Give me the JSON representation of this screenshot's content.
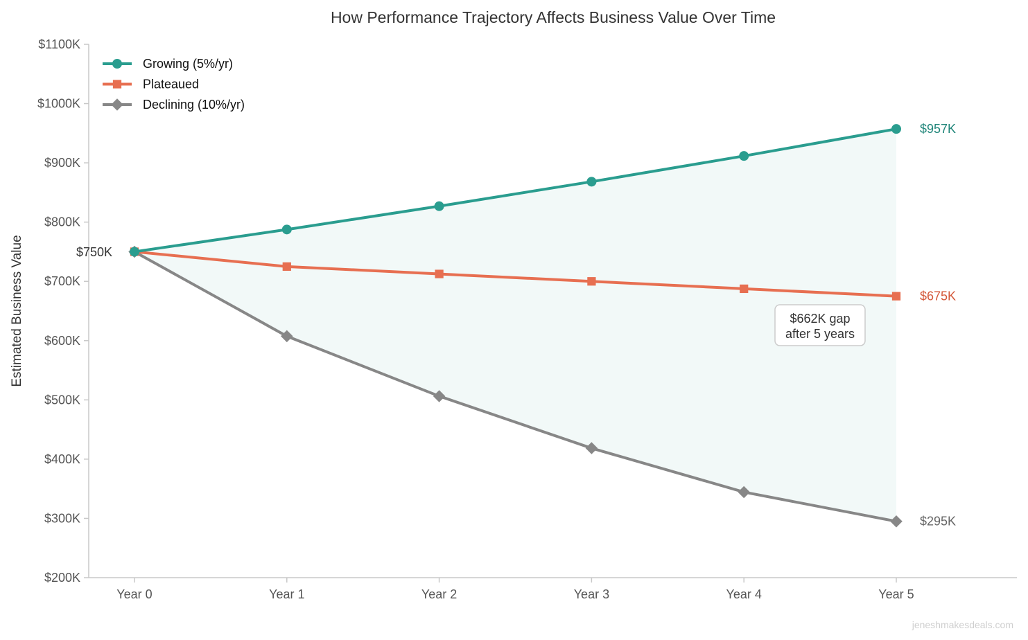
{
  "chart_data": {
    "type": "line",
    "title": "How Performance Trajectory Affects Business Value Over Time",
    "ylabel": "Estimated Business Value",
    "xlabel": "",
    "categories": [
      "Year 0",
      "Year 1",
      "Year 2",
      "Year 3",
      "Year 4",
      "Year 5"
    ],
    "ylim": [
      200,
      1100
    ],
    "y_ticks": [
      200,
      300,
      400,
      500,
      600,
      700,
      800,
      900,
      1000,
      1100
    ],
    "y_tick_labels": [
      "$200K",
      "$300K",
      "$400K",
      "$500K",
      "$600K",
      "$700K",
      "$800K",
      "$900K",
      "$1000K",
      "$1100K"
    ],
    "y_unit": "thousands of dollars",
    "grid": false,
    "legend_position": "top-left",
    "series": [
      {
        "name": "Growing (5%/yr)",
        "values": [
          750,
          787.5,
          826.9,
          868.2,
          911.6,
          957.2
        ],
        "color": "#2a9d8f",
        "marker": "circle",
        "end_label": "$957K"
      },
      {
        "name": "Plateaued",
        "values": [
          750,
          725,
          712.5,
          700,
          687.5,
          675
        ],
        "color": "#e76f51",
        "marker": "square",
        "end_label": "$675K"
      },
      {
        "name": "Declining (10%/yr)",
        "values": [
          750,
          607.5,
          506.3,
          418.5,
          344.4,
          295
        ],
        "color": "#878787",
        "marker": "diamond",
        "end_label": "$295K"
      }
    ],
    "shaded_band": {
      "between": [
        "Growing (5%/yr)",
        "Declining (10%/yr)"
      ],
      "color": "#2a9d8f"
    },
    "annotations": {
      "start_label": "$750K",
      "gap_line1": "$662K gap",
      "gap_line2": "after 5 years"
    },
    "watermark": "jeneshmakesdeals.com"
  }
}
